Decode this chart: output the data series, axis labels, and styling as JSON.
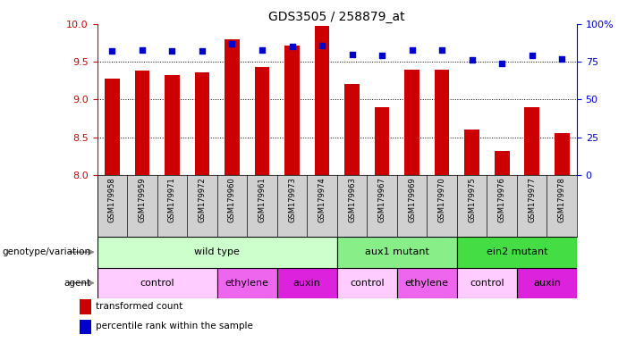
{
  "title": "GDS3505 / 258879_at",
  "samples": [
    "GSM179958",
    "GSM179959",
    "GSM179971",
    "GSM179972",
    "GSM179960",
    "GSM179961",
    "GSM179973",
    "GSM179974",
    "GSM179963",
    "GSM179967",
    "GSM179969",
    "GSM179970",
    "GSM179975",
    "GSM179976",
    "GSM179977",
    "GSM179978"
  ],
  "transformed_counts": [
    9.28,
    9.38,
    9.32,
    9.36,
    9.8,
    9.43,
    9.72,
    9.97,
    9.2,
    8.9,
    9.4,
    9.4,
    8.6,
    8.32,
    8.9,
    8.55
  ],
  "percentile_ranks": [
    82,
    83,
    82,
    82,
    87,
    83,
    85,
    86,
    80,
    79,
    83,
    83,
    76,
    74,
    79,
    77
  ],
  "ylim_left": [
    8.0,
    10.0
  ],
  "ylim_right": [
    0,
    100
  ],
  "yticks_left": [
    8.0,
    8.5,
    9.0,
    9.5,
    10.0
  ],
  "yticks_right": [
    0,
    25,
    50,
    75,
    100
  ],
  "bar_color": "#cc0000",
  "dot_color": "#0000cc",
  "bar_width": 0.5,
  "genotype_groups": [
    {
      "label": "wild type",
      "start": 0,
      "end": 8,
      "color": "#ccffcc",
      "border_color": "#000000"
    },
    {
      "label": "aux1 mutant",
      "start": 8,
      "end": 12,
      "color": "#88ee88",
      "border_color": "#000000"
    },
    {
      "label": "ein2 mutant",
      "start": 12,
      "end": 16,
      "color": "#44dd44",
      "border_color": "#000000"
    }
  ],
  "agent_groups": [
    {
      "label": "control",
      "start": 0,
      "end": 4,
      "color": "#ffccff",
      "border_color": "#000000"
    },
    {
      "label": "ethylene",
      "start": 4,
      "end": 6,
      "color": "#ee66ee",
      "border_color": "#000000"
    },
    {
      "label": "auxin",
      "start": 6,
      "end": 8,
      "color": "#dd22dd",
      "border_color": "#000000"
    },
    {
      "label": "control",
      "start": 8,
      "end": 10,
      "color": "#ffccff",
      "border_color": "#000000"
    },
    {
      "label": "ethylene",
      "start": 10,
      "end": 12,
      "color": "#ee66ee",
      "border_color": "#000000"
    },
    {
      "label": "control",
      "start": 12,
      "end": 14,
      "color": "#ffccff",
      "border_color": "#000000"
    },
    {
      "label": "auxin",
      "start": 14,
      "end": 16,
      "color": "#dd22dd",
      "border_color": "#000000"
    }
  ],
  "legend_items": [
    {
      "color": "#cc0000",
      "label": "transformed count"
    },
    {
      "color": "#0000cc",
      "label": "percentile rank within the sample"
    }
  ],
  "row_labels": [
    "genotype/variation",
    "agent"
  ],
  "dotted_yticks": [
    8.5,
    9.0,
    9.5
  ],
  "label_bg_color": "#d0d0d0",
  "label_border_color": "#888888"
}
